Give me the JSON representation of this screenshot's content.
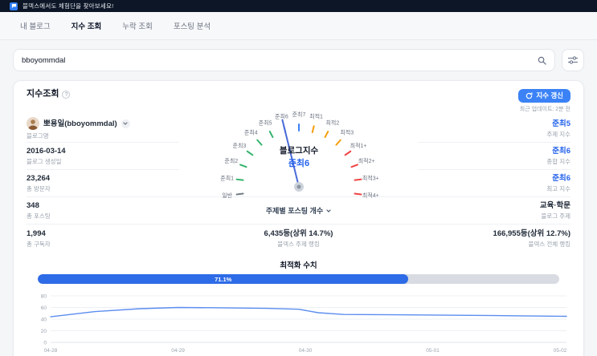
{
  "topbar": {
    "banner": "블덱스에서도 체험단을 찾아보세요!"
  },
  "tabs": {
    "items": [
      {
        "label": "내 블로그"
      },
      {
        "label": "지수 조회"
      },
      {
        "label": "누락 조회"
      },
      {
        "label": "포스팅 분석"
      }
    ]
  },
  "search": {
    "value": "bboyommdal"
  },
  "panel": {
    "title": "지수조회",
    "info": "?",
    "refresh_label": "지수 갱신",
    "last_updated": "최근 업데이트: 2분 전",
    "left_rows": [
      {
        "value": "뽀용일(bboyommdal)",
        "label": "블로그명"
      },
      {
        "value": "2016-03-14",
        "label": "블로그 생성일"
      },
      {
        "value": "23,264",
        "label": "총 방문자"
      },
      {
        "value": "348",
        "label": "총 포스팅"
      },
      {
        "value": "1,994",
        "label": "총 구독자"
      }
    ],
    "right_rows": [
      {
        "value": "준최5",
        "label": "주제 지수"
      },
      {
        "value": "준최6",
        "label": "종합 지수"
      },
      {
        "value": "준최6",
        "label": "최고 지수"
      },
      {
        "value": "교육·학문",
        "label": "블로그 주제"
      },
      {
        "value": "166,955등(상위 12.7%)",
        "label": "블덱스 전체 랭킹"
      }
    ],
    "center_dropdown": "주제별 포스팅 개수",
    "center_rank": {
      "value": "6,435등(상위 14.7%)",
      "label": "블덱스 주제 랭킹"
    }
  },
  "gauge": {
    "title": "블로그지수",
    "value": "준최6",
    "value_index": 6,
    "labels": [
      "일반",
      "준최1",
      "준최2",
      "준최3",
      "준최4",
      "준최5",
      "준최6",
      "준최7",
      "최적1",
      "최적2",
      "최적3",
      "최적1+",
      "최적2+",
      "최적3+",
      "최적4+"
    ],
    "colors": [
      "#737b87",
      "#34b36b",
      "#34b36b",
      "#34b36b",
      "#34b36b",
      "#34b36b",
      "#3b82f6",
      "#3b82f6",
      "#f59e0b",
      "#f59e0b",
      "#f59e0b",
      "#ef4444",
      "#ef4444",
      "#ef4444",
      "#ef4444"
    ],
    "start_angle": 187,
    "end_angle": -7,
    "needle_color": "#4a6bd8",
    "value_color": "#2563eb"
  },
  "optimization": {
    "title": "최적화 수치",
    "percent": 71.1,
    "label": "71.1%"
  },
  "chart_data": {
    "type": "line",
    "title": "",
    "xlabel": "",
    "ylabel": "",
    "x_tick_labels": [
      "04-28",
      "04-29",
      "04-30",
      "05-01",
      "05-02"
    ],
    "x_ticks": [
      0,
      1,
      2,
      3,
      4
    ],
    "xlim": [
      0,
      4.05
    ],
    "y_ticks": [
      0,
      20,
      40,
      60,
      80
    ],
    "ylim": [
      0,
      80
    ],
    "grid": true,
    "legend": false,
    "series": [
      {
        "color": "#5b8def",
        "points": [
          [
            0,
            44
          ],
          [
            0.35,
            53
          ],
          [
            0.7,
            58
          ],
          [
            1.0,
            60
          ],
          [
            1.35,
            59.5
          ],
          [
            1.7,
            58.5
          ],
          [
            1.95,
            57
          ],
          [
            2.1,
            51
          ],
          [
            2.3,
            48
          ],
          [
            2.7,
            47.5
          ],
          [
            3.0,
            47
          ],
          [
            3.5,
            46
          ],
          [
            4.0,
            45
          ],
          [
            4.05,
            44.8
          ]
        ]
      }
    ]
  }
}
